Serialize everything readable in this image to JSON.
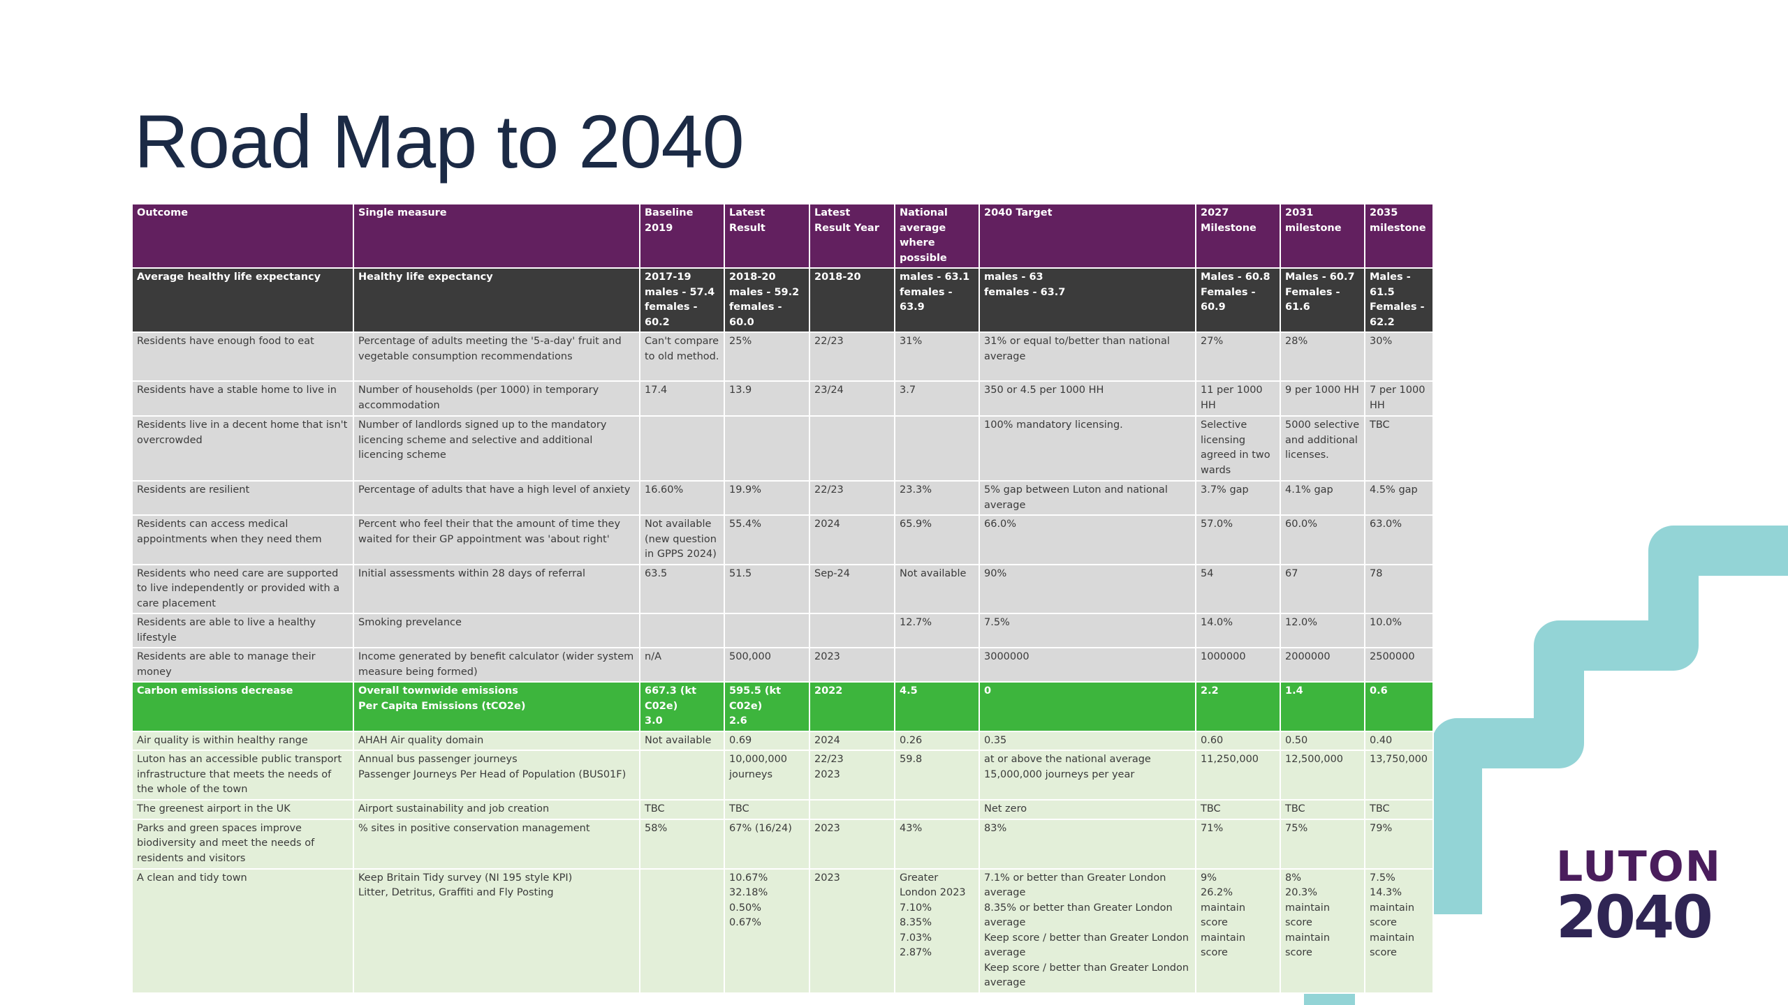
{
  "title": "Road Map to 2040",
  "logo": {
    "line1": "LUTON",
    "line2": "2040"
  },
  "table": {
    "header": [
      "Outcome",
      "Single measure",
      "Baseline 2019",
      "Latest Result",
      "Latest Result Year",
      "National average where possible",
      "2040 Target",
      "2027 Milestone",
      "2031 milestone",
      "2035 milestone"
    ],
    "rows": [
      [
        "Average healthy life expectancy",
        "Healthy life expectancy",
        "2017-19\nmales - 57.4\nfemales - 60.2",
        "2018-20\nmales - 59.2\nfemales - 60.0",
        "2018-20",
        "males - 63.1\nfemales - 63.9",
        "males - 63\nfemales - 63.7",
        "Males - 60.8\nFemales - 60.9",
        "Males - 60.7\nFemales - 61.6",
        "Males - 61.5\nFemales - 62.2"
      ],
      [
        "Residents have enough food to eat",
        "Percentage of adults meeting the '5-a-day' fruit and vegetable consumption recommendations",
        "Can't compare to old method.",
        "25%",
        "22/23",
        "31%",
        "31% or equal to/better than national average",
        "27%",
        "28%",
        "30%"
      ],
      [
        "Residents have a stable home to live in",
        "Number of households (per 1000) in temporary accommodation",
        "17.4",
        "13.9",
        "23/24",
        "3.7",
        "350 or 4.5 per 1000 HH",
        "11 per 1000 HH",
        "9 per 1000 HH",
        "7 per 1000 HH"
      ],
      [
        "Residents live in a decent home that isn't overcrowded",
        "Number of landlords signed up to the mandatory licencing scheme and selective and additional licencing scheme",
        "",
        "",
        "",
        "",
        "100% mandatory licensing.",
        "Selective licensing agreed in two wards",
        "5000 selective and additional licenses.",
        "TBC"
      ],
      [
        "Residents are resilient",
        "Percentage of adults that have a high level of anxiety",
        "16.60%",
        "19.9%",
        "22/23",
        "23.3%",
        "5% gap between Luton and national average",
        "3.7% gap",
        "4.1% gap",
        "4.5% gap"
      ],
      [
        "Residents can access medical appointments when they need them",
        "Percent who feel their that the amount of time they waited for their GP appointment was 'about right'",
        "Not available (new question in GPPS 2024)",
        "55.4%",
        "2024",
        "65.9%",
        "66.0%",
        "57.0%",
        "60.0%",
        "63.0%"
      ],
      [
        "Residents who need care are supported to live independently or provided with a care placement",
        "Initial assessments within 28 days of referral",
        "63.5",
        "51.5",
        "Sep-24",
        "Not available",
        "90%",
        "54",
        "67",
        "78"
      ],
      [
        "Residents are able to live a healthy lifestyle",
        "Smoking prevelance",
        "",
        "",
        "",
        "12.7%",
        "7.5%",
        "14.0%",
        "12.0%",
        "10.0%"
      ],
      [
        "Residents are able to manage their money",
        "Income generated by benefit calculator (wider system measure being formed)",
        "n/A",
        "500,000",
        "2023",
        "",
        "3000000",
        "1000000",
        "2000000",
        "2500000"
      ],
      [
        "Carbon emissions decrease",
        "Overall townwide emissions\nPer Capita Emissions (tCO2e)",
        "667.3 (kt C02e)\n3.0",
        "595.5 (kt C02e)\n2.6",
        "2022",
        "4.5",
        "0",
        "2.2",
        "1.4",
        "0.6"
      ],
      [
        "Air quality is within healthy range",
        "AHAH Air quality domain",
        "Not available",
        "0.69",
        "2024",
        "0.26",
        "0.35",
        "0.60",
        "0.50",
        "0.40"
      ],
      [
        "Luton has an accessible public transport infrastructure that meets the needs of the whole of the town",
        "Annual bus passenger journeys\nPassenger Journeys Per Head of Population (BUS01F)",
        "",
        "10,000,000 journeys",
        "22/23\n2023",
        "59.8",
        "at or above the national average\n15,000,000 journeys per year",
        "11,250,000",
        "12,500,000",
        "13,750,000"
      ],
      [
        "The greenest airport in the UK",
        "Airport sustainability and job creation",
        "TBC",
        "TBC",
        "",
        "",
        "Net zero",
        "TBC",
        "TBC",
        "TBC"
      ],
      [
        "Parks and green spaces improve biodiversity and meet the needs of residents and visitors",
        "% sites in positive conservation management",
        "58%",
        "67% (16/24)",
        "2023",
        "43%",
        "83%",
        "71%",
        "75%",
        "79%"
      ],
      [
        "A clean and tidy town",
        "Keep Britain Tidy survey (NI 195 style KPI)\nLitter, Detritus, Graffiti and Fly Posting",
        "",
        "10.67%\n32.18%\n0.50%\n0.67%",
        "2023",
        "Greater London 2023\n7.10%\n8.35%\n7.03%\n2.87%",
        "7.1% or better than Greater London average\n8.35% or better than Greater London average\nKeep score / better than Greater London average\nKeep score / better than Greater London average",
        "9%\n26.2%\nmaintain score\nmaintain score",
        "8%\n20.3%\nmaintain score\nmaintain score",
        "7.5%\n14.3%\nmaintain score\nmaintain score"
      ]
    ]
  }
}
